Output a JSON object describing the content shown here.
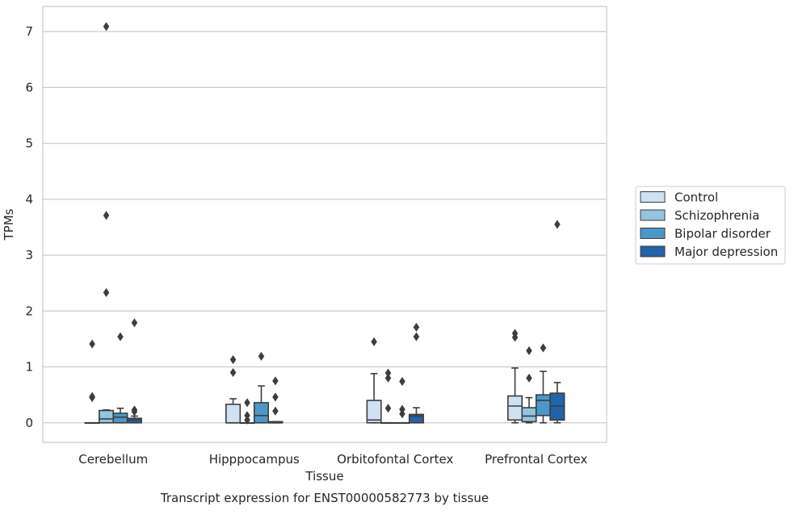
{
  "chart_data": {
    "type": "box",
    "title": "",
    "caption": "Transcript expression for ENST00000582773 by tissue",
    "xlabel": "Tissue",
    "ylabel": "TPMs",
    "ylim": [
      -0.35,
      7.45
    ],
    "yticks": [
      0,
      1,
      2,
      3,
      4,
      5,
      6,
      7
    ],
    "grid": "horizontal",
    "legend_position": "right",
    "categories": [
      "Cerebellum",
      "Hipppocampus",
      "Orbitofontal Cortex",
      "Prefrontal Cortex"
    ],
    "series": [
      {
        "name": "Control",
        "color": "#d0e1f2",
        "boxes": [
          {
            "whisker_low": 0,
            "q1": 0,
            "median": 0,
            "q3": 0,
            "whisker_high": 0,
            "outliers": [
              0.45,
              0.47,
              1.41
            ]
          },
          {
            "whisker_low": 0,
            "q1": 0,
            "median": 0,
            "q3": 0.33,
            "whisker_high": 0.43,
            "outliers": [
              0.9,
              1.13
            ]
          },
          {
            "whisker_low": 0,
            "q1": 0,
            "median": 0.05,
            "q3": 0.4,
            "whisker_high": 0.88,
            "outliers": [
              1.45
            ]
          },
          {
            "whisker_low": 0,
            "q1": 0.05,
            "median": 0.3,
            "q3": 0.48,
            "whisker_high": 0.98,
            "outliers": [
              1.53,
              1.6
            ]
          }
        ]
      },
      {
        "name": "Schizophrenia",
        "color": "#94c4df",
        "boxes": [
          {
            "whisker_low": 0,
            "q1": 0,
            "median": 0.07,
            "q3": 0.22,
            "whisker_high": 0.23,
            "outliers": [
              2.33,
              3.71,
              7.09
            ]
          },
          {
            "whisker_low": 0,
            "q1": 0,
            "median": 0,
            "q3": 0,
            "whisker_high": 0,
            "outliers": [
              0.05,
              0.13,
              0.36
            ]
          },
          {
            "whisker_low": 0,
            "q1": 0,
            "median": 0,
            "q3": 0,
            "whisker_high": 0,
            "outliers": [
              0.26,
              0.8,
              0.89
            ]
          },
          {
            "whisker_low": 0,
            "q1": 0.02,
            "median": 0.12,
            "q3": 0.27,
            "whisker_high": 0.45,
            "outliers": [
              0.8,
              1.29
            ]
          }
        ]
      },
      {
        "name": "Bipolar disorder",
        "color": "#4a98c9",
        "boxes": [
          {
            "whisker_low": 0,
            "q1": 0,
            "median": 0.1,
            "q3": 0.17,
            "whisker_high": 0.26,
            "outliers": [
              1.54
            ]
          },
          {
            "whisker_low": 0,
            "q1": 0,
            "median": 0.13,
            "q3": 0.36,
            "whisker_high": 0.66,
            "outliers": [
              1.19
            ]
          },
          {
            "whisker_low": 0,
            "q1": 0,
            "median": 0,
            "q3": 0,
            "whisker_high": 0,
            "outliers": [
              0.16,
              0.24,
              0.74
            ]
          },
          {
            "whisker_low": 0,
            "q1": 0.13,
            "median": 0.4,
            "q3": 0.5,
            "whisker_high": 0.92,
            "outliers": [
              1.34
            ]
          }
        ]
      },
      {
        "name": "Major depression",
        "color": "#2164ab",
        "boxes": [
          {
            "whisker_low": 0,
            "q1": 0,
            "median": 0.05,
            "q3": 0.08,
            "whisker_high": 0.12,
            "outliers": [
              0.2,
              0.23,
              1.79
            ]
          },
          {
            "whisker_low": 0,
            "q1": 0,
            "median": 0,
            "q3": 0.02,
            "whisker_high": 0.02,
            "outliers": [
              0.21,
              0.46,
              0.75
            ]
          },
          {
            "whisker_low": 0,
            "q1": 0,
            "median": 0.12,
            "q3": 0.15,
            "whisker_high": 0.27,
            "outliers": [
              1.54,
              1.71
            ]
          },
          {
            "whisker_low": 0,
            "q1": 0.05,
            "median": 0.3,
            "q3": 0.53,
            "whisker_high": 0.72,
            "outliers": [
              3.55
            ]
          }
        ]
      }
    ]
  }
}
